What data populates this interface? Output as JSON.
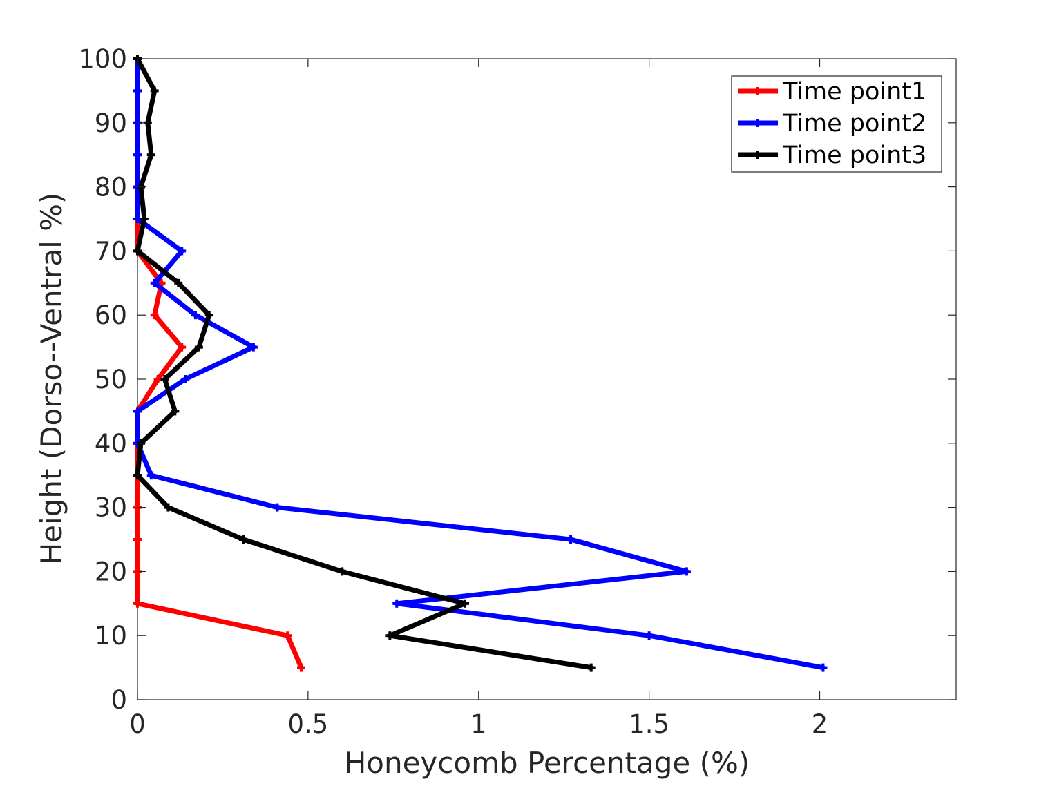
{
  "chart_data": {
    "type": "line",
    "title": "",
    "xlabel": "Honeycomb Percentage (%)",
    "ylabel": "Height (Dorso--Ventral %)",
    "xlim": [
      0,
      2.4
    ],
    "ylim": [
      0,
      100
    ],
    "x_ticks": [
      "0",
      "0.5",
      "1",
      "1.5",
      "2"
    ],
    "y_ticks": [
      "0",
      "10",
      "20",
      "30",
      "40",
      "50",
      "60",
      "70",
      "80",
      "90",
      "100"
    ],
    "x_tick_values": [
      0,
      0.5,
      1,
      1.5,
      2
    ],
    "y_tick_values": [
      0,
      10,
      20,
      30,
      40,
      50,
      60,
      70,
      80,
      90,
      100
    ],
    "grid": false,
    "legend_position": "top-right",
    "heights": [
      100,
      95,
      90,
      85,
      80,
      75,
      70,
      65,
      60,
      55,
      50,
      45,
      40,
      35,
      30,
      25,
      20,
      15,
      10,
      5
    ],
    "series": [
      {
        "name": "Time point1",
        "color": "#ff0000",
        "values": [
          0,
          0,
          0,
          0,
          0,
          0,
          0,
          0.07,
          0.05,
          0.13,
          0.06,
          0,
          0,
          0,
          0,
          0,
          0,
          0,
          0.44,
          0.48
        ]
      },
      {
        "name": "Time point2",
        "color": "#0000ff",
        "values": [
          0,
          0,
          0,
          0,
          0,
          0,
          0.13,
          0.05,
          0.17,
          0.34,
          0.14,
          0,
          0,
          0.04,
          0.41,
          1.27,
          1.61,
          0.76,
          1.5,
          2.01
        ]
      },
      {
        "name": "Time point3",
        "color": "#000000",
        "values": [
          0,
          0.05,
          0.03,
          0.04,
          0.01,
          0.02,
          0,
          0.12,
          0.21,
          0.18,
          0.08,
          0.11,
          0.01,
          0,
          0.09,
          0.31,
          0.6,
          0.96,
          0.74,
          1.33
        ]
      }
    ]
  }
}
